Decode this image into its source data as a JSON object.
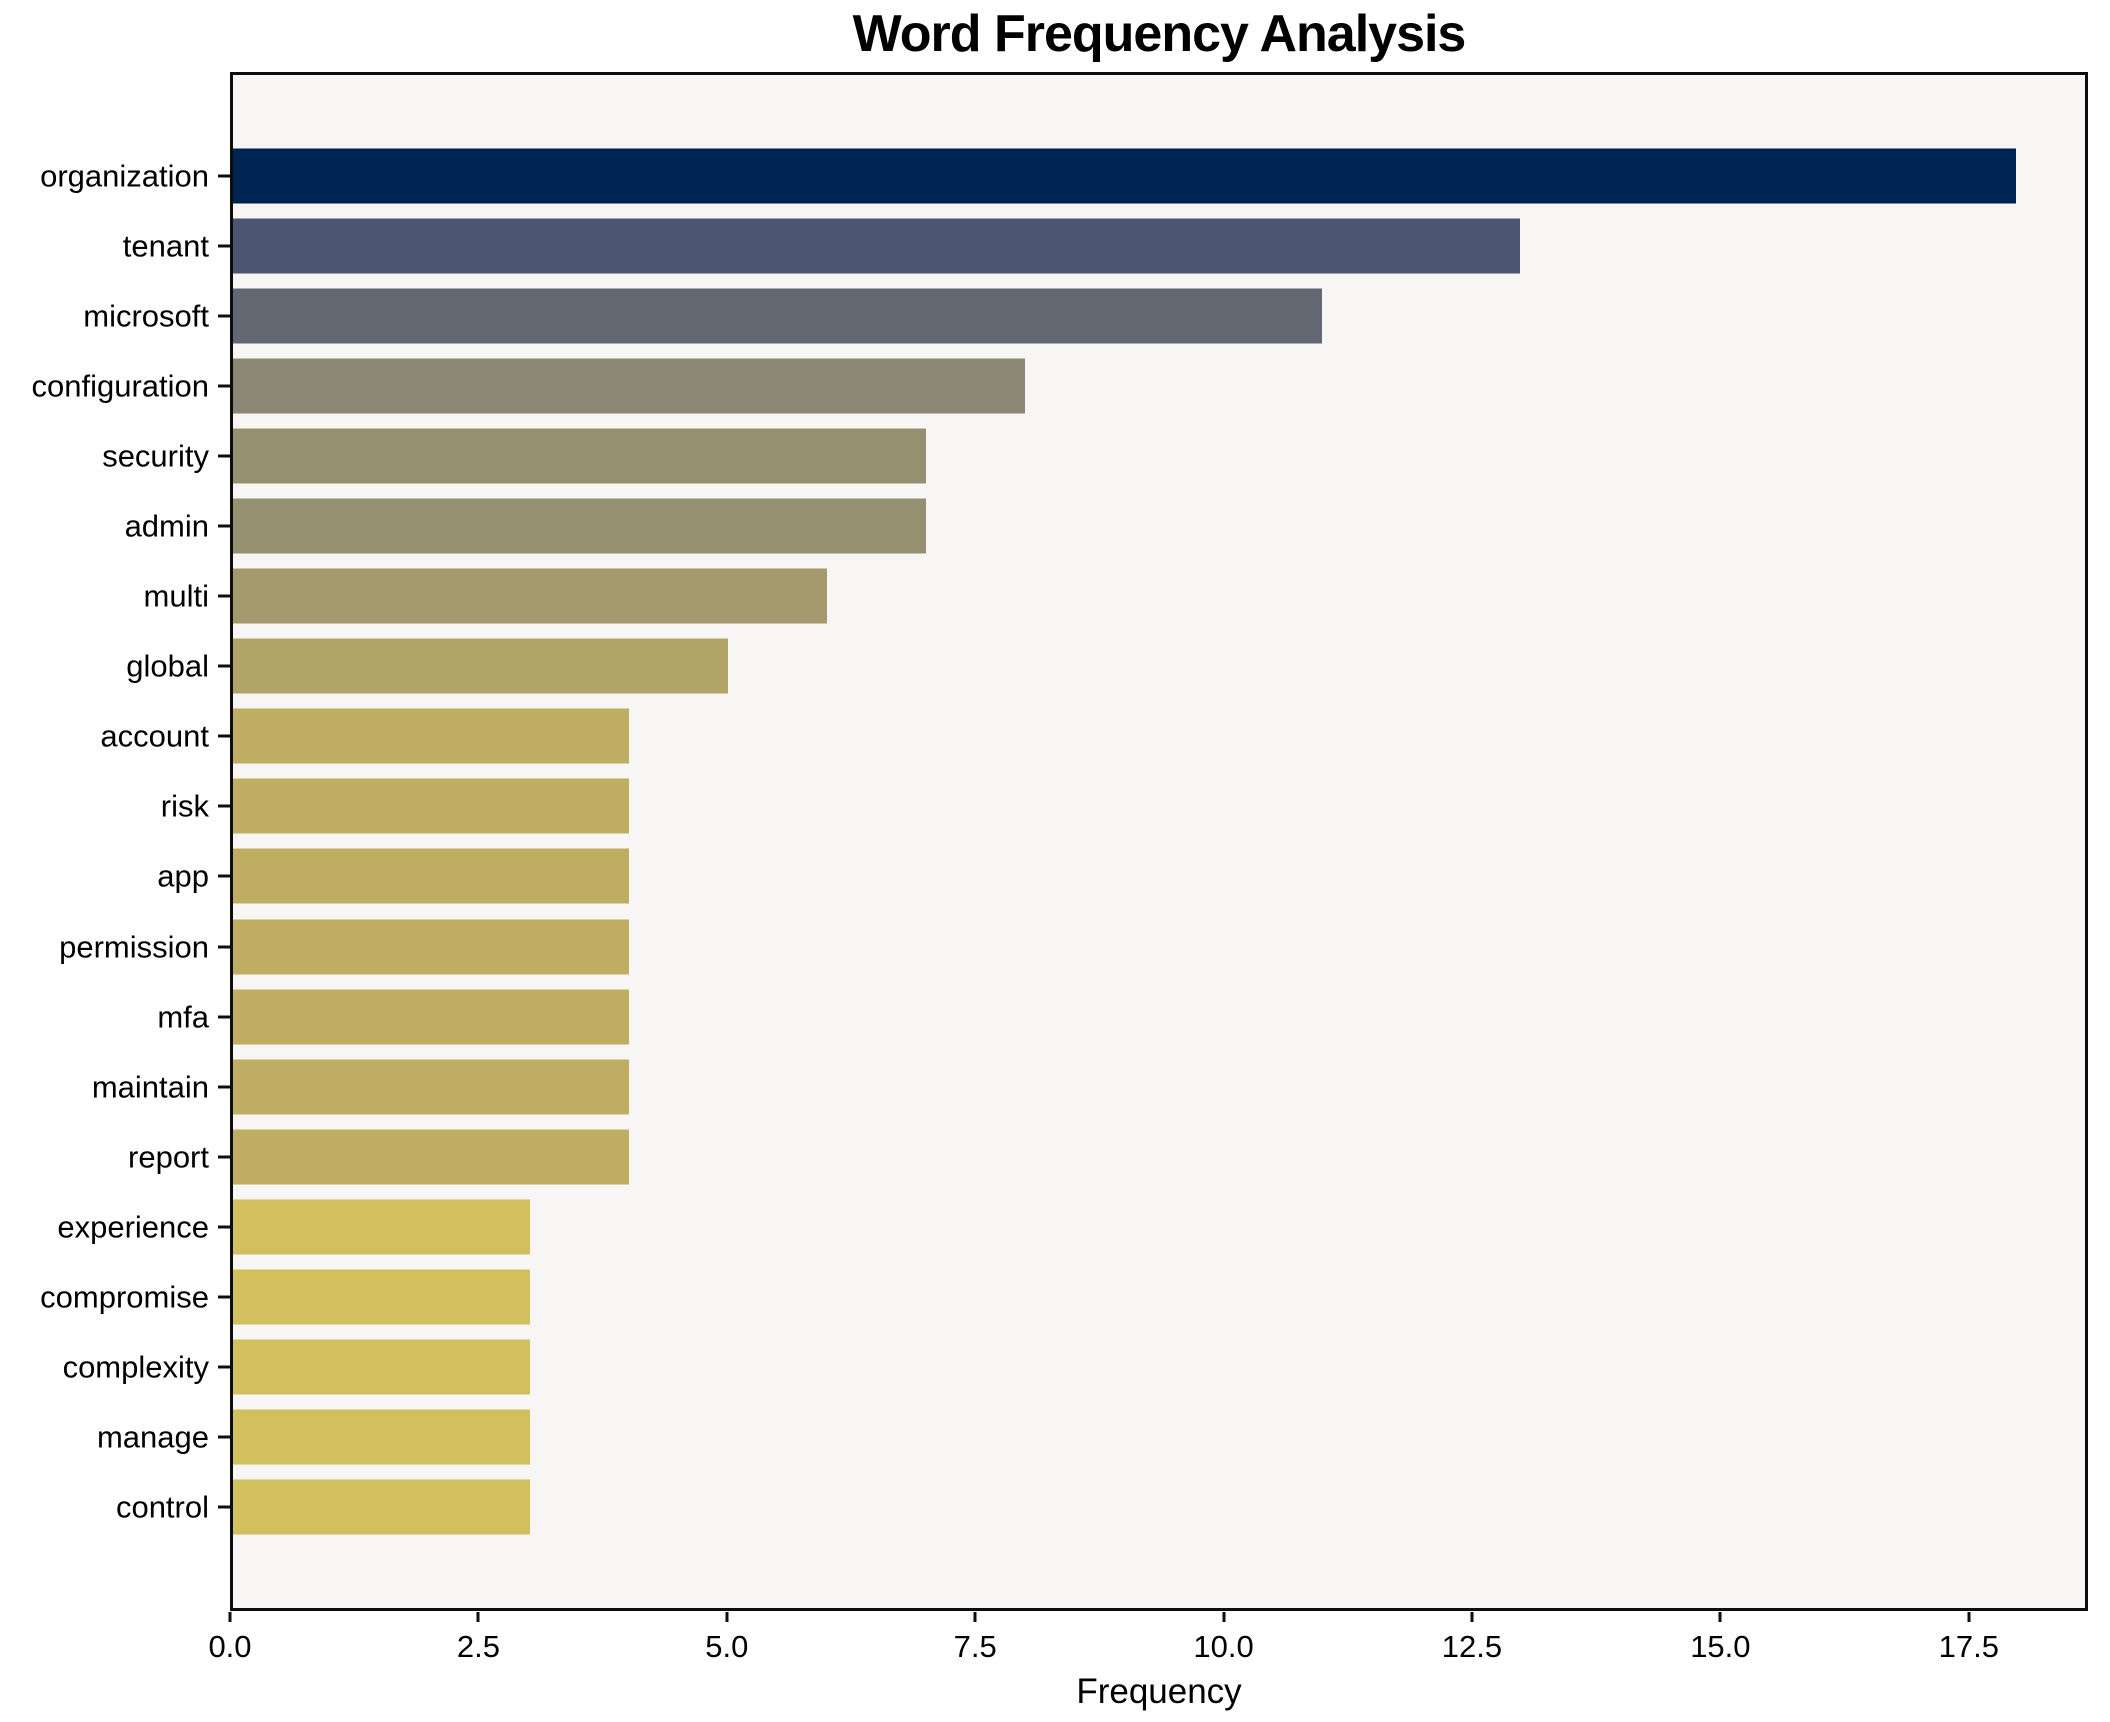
{
  "chart_data": {
    "type": "bar",
    "orientation": "horizontal",
    "title": "Word Frequency Analysis",
    "xlabel": "Frequency",
    "ylabel": "",
    "categories": [
      "organization",
      "tenant",
      "microsoft",
      "configuration",
      "security",
      "admin",
      "multi",
      "global",
      "account",
      "risk",
      "app",
      "permission",
      "mfa",
      "maintain",
      "report",
      "experience",
      "compromise",
      "complexity",
      "manage",
      "control"
    ],
    "values": [
      18,
      13,
      11,
      8,
      7,
      7,
      6,
      5,
      4,
      4,
      4,
      4,
      4,
      4,
      4,
      3,
      3,
      3,
      3,
      3
    ],
    "bar_colors": [
      "#002452",
      "#4b5470",
      "#626871",
      "#8a8875",
      "#949070",
      "#949070",
      "#a49a6e",
      "#b0a566",
      "#bfae62",
      "#bfae62",
      "#bfae62",
      "#bfae62",
      "#bfae62",
      "#bfae62",
      "#bfae62",
      "#d2bf5e",
      "#d2bf5e",
      "#d2bf5e",
      "#d2bf5e",
      "#d2bf5e"
    ],
    "xlim": [
      0,
      18.7
    ],
    "x_ticks": [
      0,
      2.5,
      5,
      7.5,
      10,
      12.5,
      15,
      17.5
    ],
    "x_tick_labels": [
      "0.0",
      "2.5",
      "5.0",
      "7.5",
      "10.0",
      "12.5",
      "15.0",
      "17.5"
    ],
    "grid": false,
    "legend": null,
    "plot_background": "#f7f6f4",
    "spine_color": "#0d0d0d",
    "colormap": "cividis"
  }
}
